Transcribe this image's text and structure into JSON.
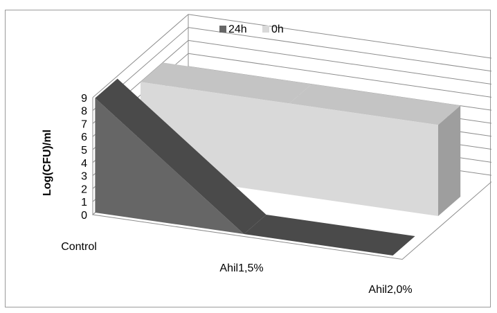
{
  "chart_data": {
    "type": "area",
    "view": "3d",
    "categories": [
      "Control",
      "Ahil1,5%",
      "Ahil2,0%"
    ],
    "series": [
      {
        "name": "24h",
        "values": [
          8.8,
          0,
          0
        ],
        "color": "#666666"
      },
      {
        "name": "0h",
        "values": [
          7.0,
          7.0,
          7.0
        ],
        "color": "#d9d9d9"
      }
    ],
    "title": "",
    "xlabel": "",
    "ylabel": "Log(CFU)/ml",
    "ylim": [
      0,
      9
    ],
    "yticks": [
      "0",
      "1",
      "2",
      "3",
      "4",
      "5",
      "6",
      "7",
      "8",
      "9"
    ],
    "grid": true,
    "legend": "top"
  }
}
